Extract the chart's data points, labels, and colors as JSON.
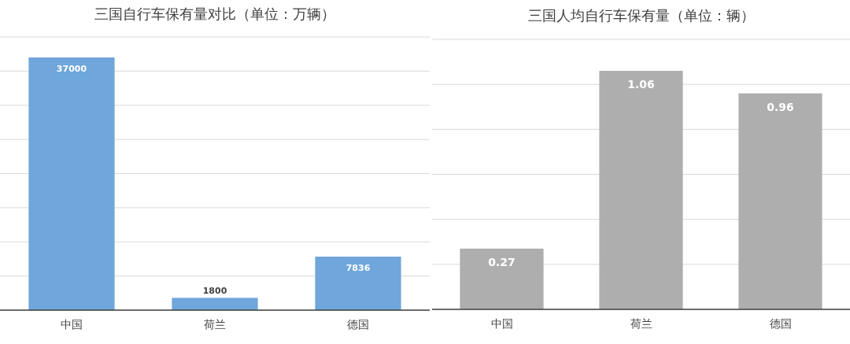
{
  "chart_data": [
    {
      "type": "bar",
      "title": "三国自行车保有量对比（单位：万辆）",
      "categories": [
        "中国",
        "荷兰",
        "德国"
      ],
      "values": [
        37000,
        1800,
        7836
      ],
      "color": "#6fa6db",
      "ylim": [
        0,
        40000
      ],
      "yticks": [
        {
          "value": 0,
          "label": null
        },
        {
          "value": 5000,
          "label": null
        },
        {
          "value": 10000,
          "label": null
        },
        {
          "value": 15000,
          "label": null
        },
        {
          "value": 20000,
          "label": null
        },
        {
          "value": 25000,
          "label": null
        },
        {
          "value": 30000,
          "label": null
        },
        {
          "value": 35000,
          "label": null
        },
        {
          "value": 40000,
          "label": null
        }
      ],
      "grid": "y",
      "tick_labels": "x",
      "data_labels": true
    },
    {
      "type": "bar",
      "title": "三国人均自行车保有量（单位：辆）",
      "categories": [
        "中国",
        "荷兰",
        "德国"
      ],
      "values": [
        0.27,
        1.06,
        0.96
      ],
      "color": "#aeaeae",
      "ylim": [
        0,
        1.2
      ],
      "yticks": [
        {
          "value": 0,
          "label": null
        },
        {
          "value": 0.2,
          "label": null
        },
        {
          "value": 0.4,
          "label": null
        },
        {
          "value": 0.6,
          "label": null
        },
        {
          "value": 0.8,
          "label": null
        },
        {
          "value": 1.0,
          "label": null
        },
        {
          "value": 1.2,
          "label": null
        }
      ],
      "grid": "y",
      "tick_labels": "x",
      "data_labels": true
    }
  ]
}
